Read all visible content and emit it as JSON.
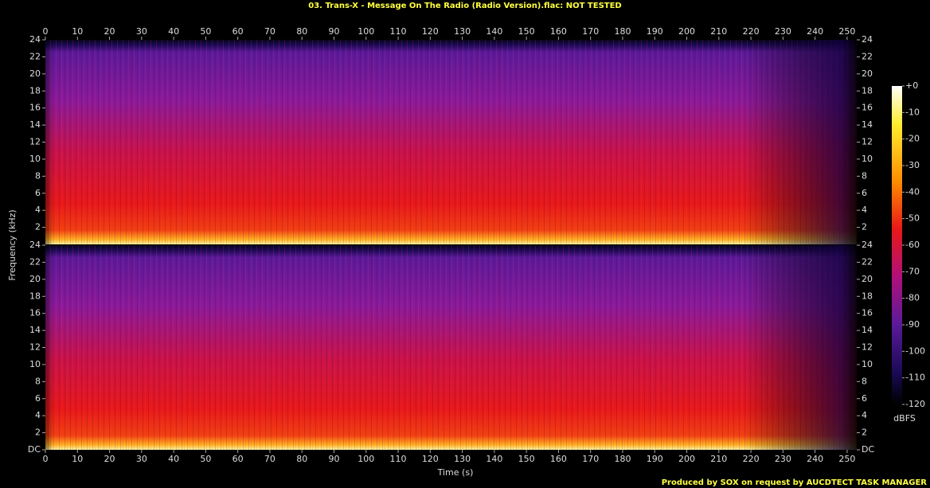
{
  "chart_data": {
    "type": "spectrogram",
    "title": "03. Trans-X - Message On The Radio (Radio Version).flac: NOT TESTED",
    "x_label": "Time (s)",
    "y_label": "Frequency (kHz)",
    "footer": "Produced by SOX on request by AUCDTECT TASK MANAGER",
    "xlim": [
      0,
      253
    ],
    "xticks": [
      0,
      10,
      20,
      30,
      40,
      50,
      60,
      70,
      80,
      90,
      100,
      110,
      120,
      130,
      140,
      150,
      160,
      170,
      180,
      190,
      200,
      210,
      220,
      230,
      240,
      250
    ],
    "panels": [
      {
        "ylim": [
          0,
          24
        ],
        "yticks": [
          2,
          4,
          6,
          8,
          10,
          12,
          14,
          16,
          18,
          20,
          22,
          24
        ]
      },
      {
        "ylim": [
          0,
          24
        ],
        "yticks": [
          {
            "value": 0,
            "label": "DC"
          },
          2,
          4,
          6,
          8,
          10,
          12,
          14,
          16,
          18,
          20,
          22,
          24
        ]
      }
    ],
    "colorbar": {
      "label": "dBFS",
      "lim": [
        -120,
        0
      ],
      "ticks": [
        {
          "value": 0,
          "label": "+0"
        },
        -10,
        -20,
        -30,
        -40,
        -50,
        -60,
        -70,
        -80,
        -90,
        -100,
        -110,
        -120
      ]
    }
  }
}
